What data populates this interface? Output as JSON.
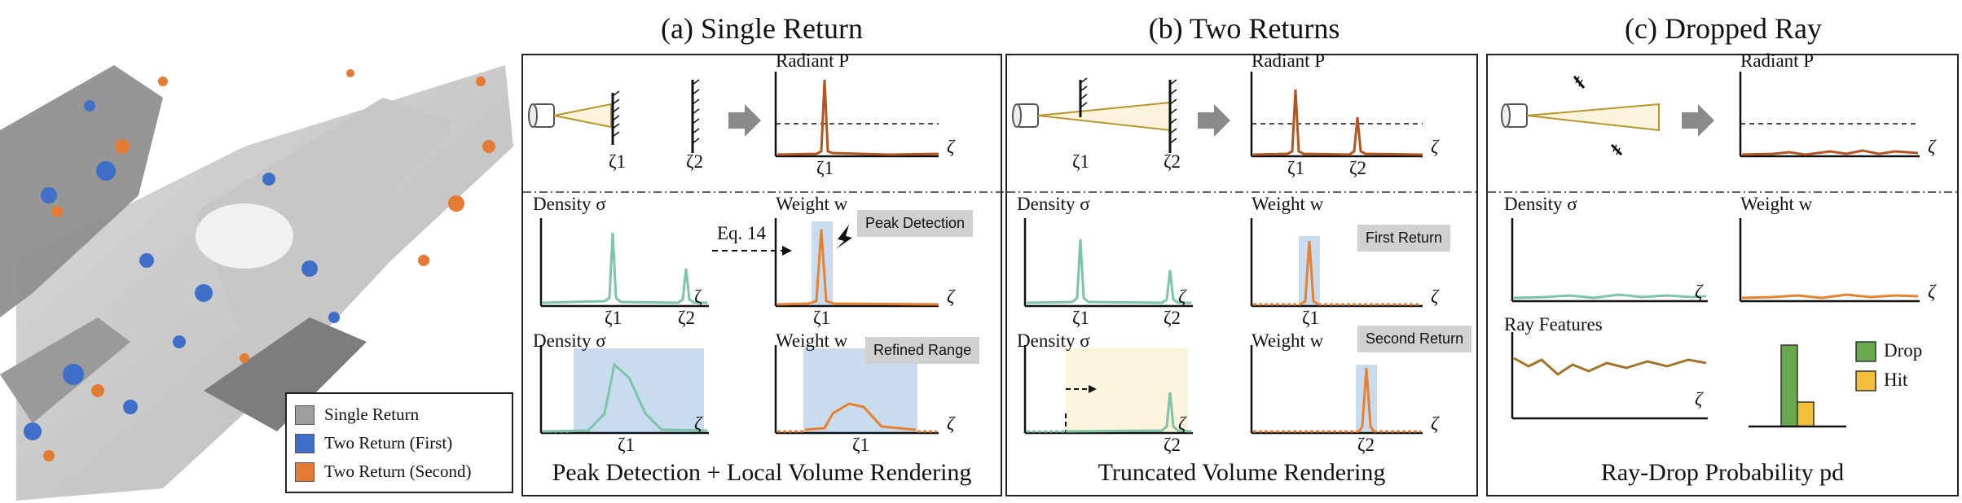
{
  "panels": {
    "a": {
      "title": "(a) Single Return",
      "caption": "Peak Detection + Local Volume Rendering",
      "radiant": "Radiant P",
      "density": "Density σ",
      "weight": "Weight w",
      "eq": "Eq. 14",
      "badge_peak": "Peak Detection",
      "badge_refined": "Refined Range"
    },
    "b": {
      "title": "(b) Two Returns",
      "caption": "Truncated Volume Rendering",
      "radiant": "Radiant P",
      "density": "Density σ",
      "weight": "Weight w",
      "badge_first": "First Return",
      "badge_second": "Second Return"
    },
    "c": {
      "title": "(c) Dropped Ray",
      "caption": "Ray-Drop Probability pd",
      "radiant": "Radiant P",
      "density": "Density σ",
      "weight": "Weight w",
      "ray_features": "Ray Features",
      "bar_legend": [
        "Drop",
        "Hit"
      ]
    }
  },
  "axis": {
    "zeta": "ζ",
    "zeta1": "ζ1",
    "zeta2": "ζ2"
  },
  "legend": {
    "items": [
      {
        "label": "Single Return",
        "color": "#9e9e9e"
      },
      {
        "label": "Two Return (First)",
        "color": "#3f6fc9"
      },
      {
        "label": "Two Return (Second)",
        "color": "#e47b33"
      }
    ]
  },
  "colors": {
    "radiant": "#b4541e",
    "density": "#7cc3a8",
    "weight": "#e8812e",
    "highlight": "#c9dbef",
    "cream": "#fbf3dc",
    "drop": "#6aa84f",
    "hit": "#f3bf3a",
    "feature": "#a3732a"
  }
}
